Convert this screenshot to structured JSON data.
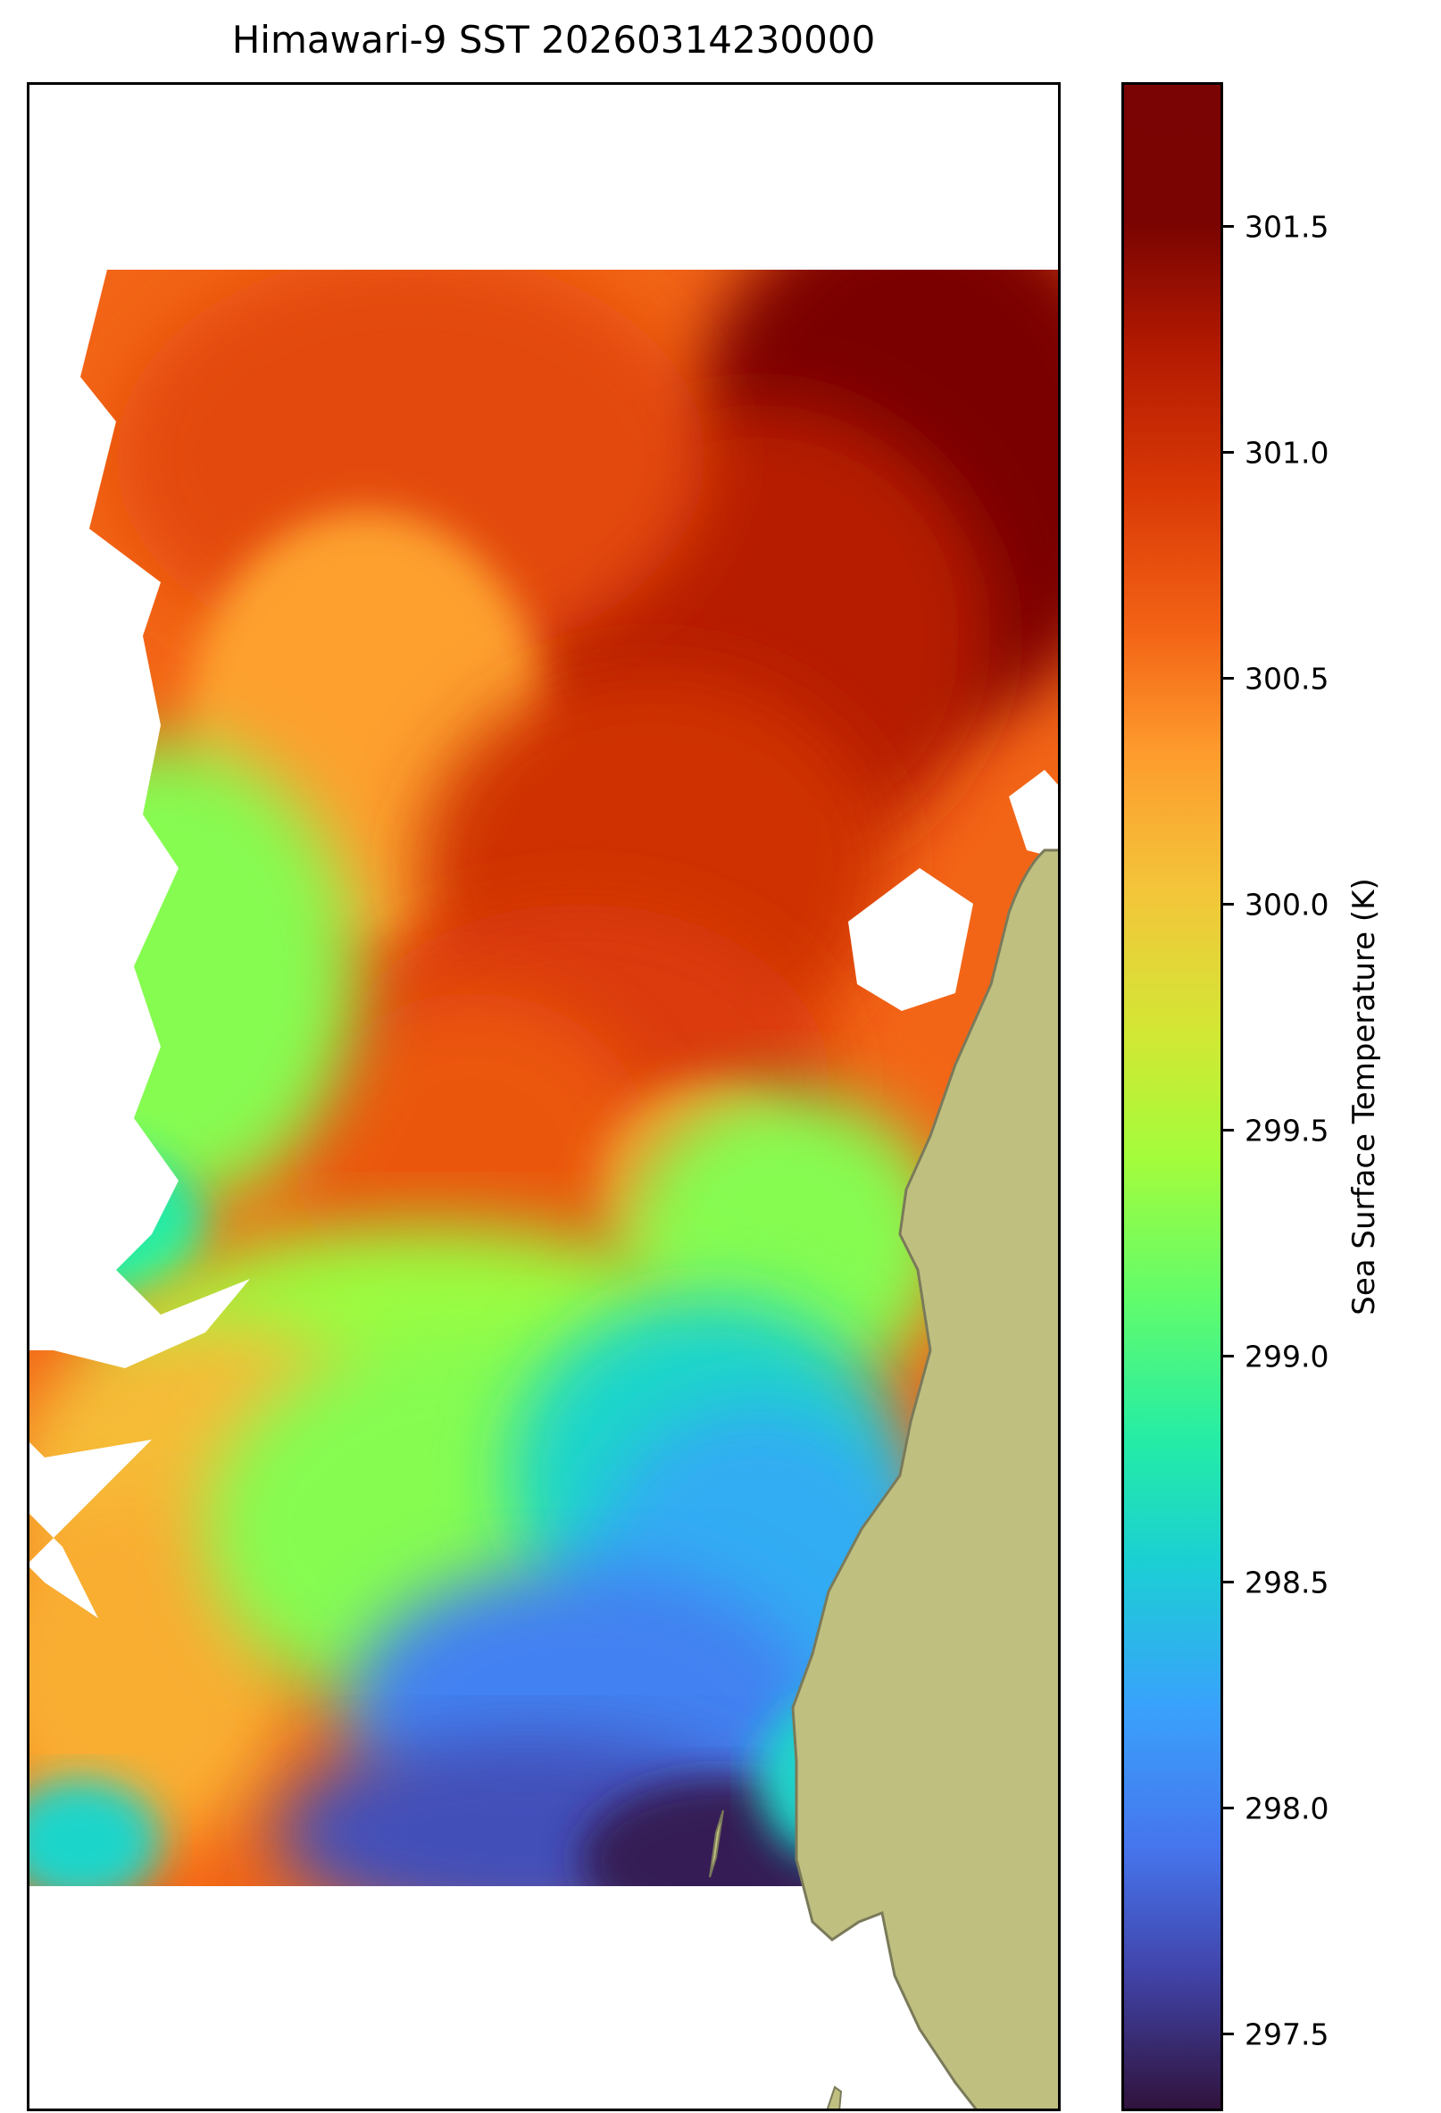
{
  "chart_data": {
    "type": "heatmap",
    "title": "Himawari-9 SST 20260314230000",
    "colorbar": {
      "label": "Sea Surface Temperature (K)",
      "range": [
        297.33,
        301.82
      ],
      "ticks": [
        297.5,
        298.0,
        298.5,
        299.0,
        299.5,
        300.0,
        300.5,
        301.0,
        301.5
      ],
      "tick_labels": [
        "297.5",
        "298.0",
        "298.5",
        "299.0",
        "299.5",
        "300.0",
        "300.5",
        "301.0",
        "301.5"
      ],
      "colormap": "turbo"
    },
    "land_color": "#bfbf80",
    "coast_color": "#7a7a5a",
    "no_data_color": "#ffffff",
    "field_description_regions": [
      {
        "region": "north-east",
        "value_K": 301.8
      },
      {
        "region": "north-central",
        "value_K": 300.9
      },
      {
        "region": "north-west",
        "value_K": 300.7
      },
      {
        "region": "central",
        "value_K": 300.8
      },
      {
        "region": "central-east",
        "value_K": 301.1
      },
      {
        "region": "west",
        "value_K": 299.3
      },
      {
        "region": "south-west",
        "value_K": 300.2
      },
      {
        "region": "south-central",
        "value_K": 299.3
      },
      {
        "region": "south-east",
        "value_K": 298.3
      },
      {
        "region": "south",
        "value_K": 297.4
      }
    ]
  }
}
